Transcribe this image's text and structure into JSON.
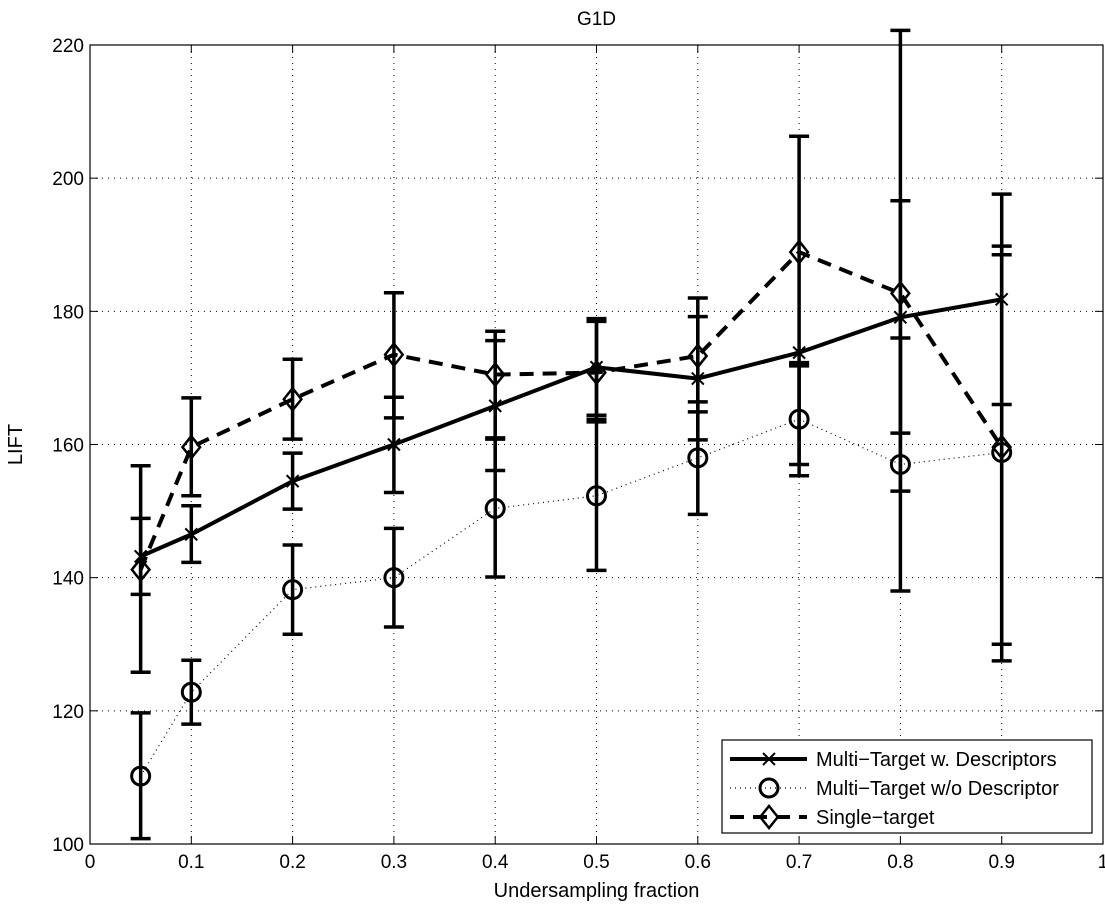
{
  "chart_data": {
    "type": "line",
    "title": "G1D",
    "xlabel": "Undersampling fraction",
    "ylabel": "LIFT",
    "xlim": [
      0,
      1
    ],
    "ylim": [
      100,
      220
    ],
    "xticks": [
      0,
      0.1,
      0.2,
      0.3,
      0.4,
      0.5,
      0.6,
      0.7,
      0.8,
      0.9,
      1
    ],
    "xtick_labels": [
      "0",
      "0.1",
      "0.2",
      "0.3",
      "0.4",
      "0.5",
      "0.6",
      "0.7",
      "0.8",
      "0.9",
      "1"
    ],
    "yticks": [
      100,
      120,
      140,
      160,
      180,
      200,
      220
    ],
    "ytick_labels": [
      "100",
      "120",
      "140",
      "160",
      "180",
      "200",
      "220"
    ],
    "grid": true,
    "legend_position": "bottom-right",
    "x": [
      0.05,
      0.1,
      0.2,
      0.3,
      0.4,
      0.5,
      0.6,
      0.7,
      0.8,
      0.9
    ],
    "series": [
      {
        "name": "Multi−Target w. Descriptors",
        "line_style": "solid",
        "marker": "x",
        "values": [
          143.2,
          146.5,
          154.5,
          160.0,
          165.8,
          171.6,
          169.9,
          173.8,
          179.1,
          181.8
        ],
        "error_low": [
          137.5,
          142.3,
          150.3,
          152.8,
          156.1,
          164.4,
          160.7,
          155.3,
          161.7,
          166.0
        ],
        "error_high": [
          148.9,
          150.8,
          158.7,
          167.1,
          175.6,
          178.9,
          179.2,
          172.3,
          196.6,
          189.8
        ]
      },
      {
        "name": "Multi−Target w/o Descriptor",
        "line_style": "dotted",
        "marker": "o",
        "values": [
          110.2,
          122.8,
          138.2,
          140.0,
          150.4,
          152.3,
          158.0,
          163.8,
          157.0,
          158.8
        ],
        "error_low": [
          100.8,
          118.0,
          131.5,
          132.6,
          140.1,
          141.1,
          149.5,
          157.0,
          153.0,
          127.5
        ],
        "error_high": [
          119.7,
          127.6,
          144.9,
          147.4,
          160.8,
          163.4,
          166.4,
          172.0,
          176.0,
          188.5
        ]
      },
      {
        "name": "Single−target",
        "line_style": "dashed",
        "marker": "diamond",
        "values": [
          141.2,
          159.6,
          166.8,
          173.5,
          170.5,
          170.8,
          173.3,
          188.9,
          182.7,
          159.6
        ],
        "error_low": [
          125.8,
          152.3,
          160.8,
          164.0,
          161.0,
          163.8,
          164.9,
          171.8,
          138.0,
          130.0
        ],
        "error_high": [
          156.8,
          167.0,
          172.8,
          182.8,
          177.0,
          178.5,
          182.0,
          206.3,
          222.2,
          197.6
        ]
      }
    ]
  }
}
